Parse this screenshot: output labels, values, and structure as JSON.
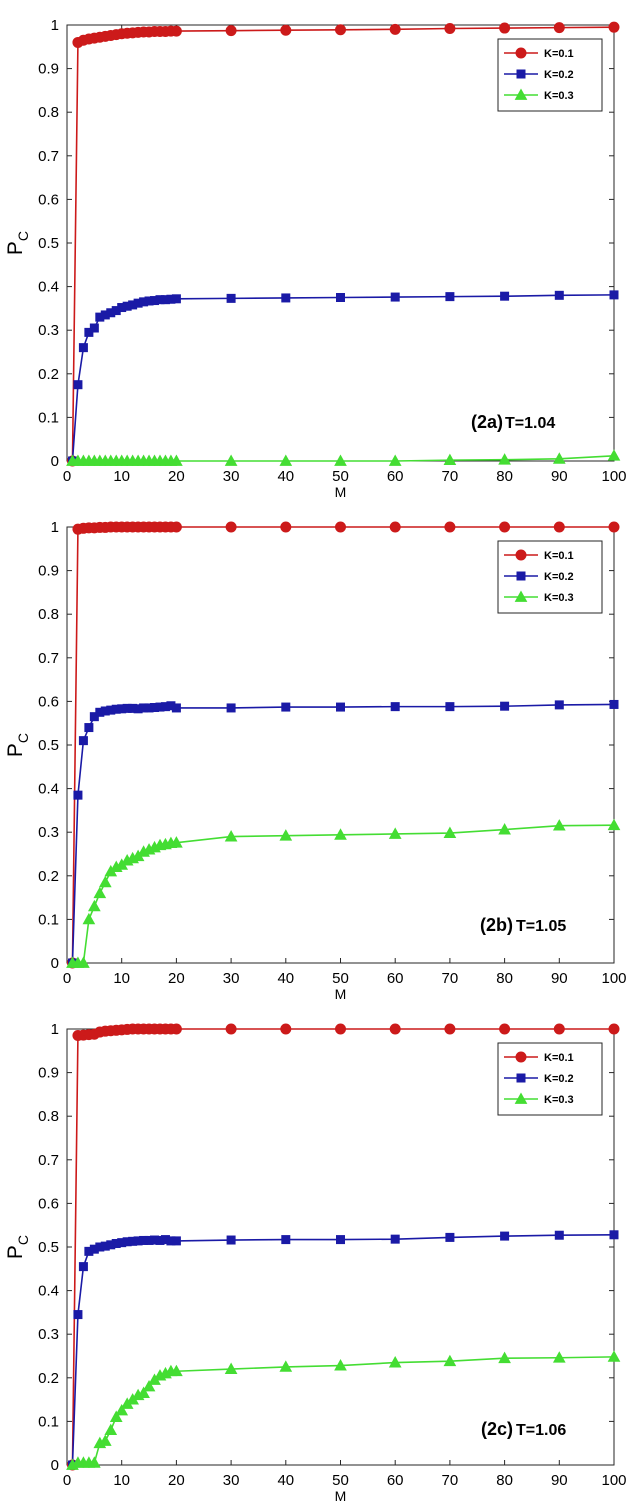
{
  "figure": {
    "panels": [
      {
        "panel_label": "(2a)",
        "condition": "T=1.04"
      },
      {
        "panel_label": "(2b)",
        "condition": "T=1.05"
      },
      {
        "panel_label": "(2c)",
        "condition": "T=1.06"
      }
    ]
  },
  "chart_data": [
    {
      "type": "line",
      "xlabel": "M",
      "ylabel": "P",
      "ylabel_subscript": "C",
      "xlim": [
        0,
        100
      ],
      "ylim": [
        0,
        1
      ],
      "xticks": [
        0,
        10,
        20,
        30,
        40,
        50,
        60,
        70,
        80,
        90,
        100
      ],
      "yticks": [
        0,
        0.1,
        0.2,
        0.3,
        0.4,
        0.5,
        0.6,
        0.7,
        0.8,
        0.9,
        1
      ],
      "grid": false,
      "legend_position": "top-right",
      "series": [
        {
          "name": "K=0.1",
          "color": "#cc1a1a",
          "marker": "circle",
          "x": [
            1,
            2,
            3,
            4,
            5,
            6,
            7,
            8,
            9,
            10,
            11,
            12,
            13,
            14,
            15,
            16,
            17,
            18,
            19,
            20,
            30,
            40,
            50,
            60,
            70,
            80,
            90,
            100
          ],
          "y": [
            0,
            0.96,
            0.965,
            0.968,
            0.97,
            0.972,
            0.974,
            0.976,
            0.978,
            0.98,
            0.981,
            0.982,
            0.983,
            0.984,
            0.984,
            0.985,
            0.985,
            0.985,
            0.986,
            0.986,
            0.987,
            0.988,
            0.989,
            0.99,
            0.992,
            0.993,
            0.994,
            0.995
          ]
        },
        {
          "name": "K=0.2",
          "color": "#1a1aa6",
          "marker": "square",
          "x": [
            1,
            2,
            3,
            4,
            5,
            6,
            7,
            8,
            9,
            10,
            11,
            12,
            13,
            14,
            15,
            16,
            17,
            18,
            19,
            20,
            30,
            40,
            50,
            60,
            70,
            80,
            90,
            100
          ],
          "y": [
            0,
            0.175,
            0.26,
            0.295,
            0.305,
            0.33,
            0.335,
            0.34,
            0.345,
            0.352,
            0.355,
            0.358,
            0.362,
            0.365,
            0.367,
            0.368,
            0.37,
            0.37,
            0.371,
            0.372,
            0.373,
            0.374,
            0.375,
            0.376,
            0.377,
            0.378,
            0.38,
            0.381
          ]
        },
        {
          "name": "K=0.3",
          "color": "#44dd33",
          "marker": "triangle",
          "x": [
            1,
            2,
            3,
            4,
            5,
            6,
            7,
            8,
            9,
            10,
            11,
            12,
            13,
            14,
            15,
            16,
            17,
            18,
            19,
            20,
            30,
            40,
            50,
            60,
            70,
            80,
            90,
            100
          ],
          "y": [
            0,
            0,
            0,
            0,
            0,
            0,
            0,
            0,
            0,
            0,
            0,
            0,
            0,
            0,
            0,
            0,
            0,
            0,
            0,
            0,
            0,
            0,
            0,
            0,
            0.002,
            0.003,
            0.005,
            0.012
          ]
        }
      ]
    },
    {
      "type": "line",
      "xlabel": "M",
      "ylabel": "P",
      "ylabel_subscript": "C",
      "xlim": [
        0,
        100
      ],
      "ylim": [
        0,
        1
      ],
      "xticks": [
        0,
        10,
        20,
        30,
        40,
        50,
        60,
        70,
        80,
        90,
        100
      ],
      "yticks": [
        0,
        0.1,
        0.2,
        0.3,
        0.4,
        0.5,
        0.6,
        0.7,
        0.8,
        0.9,
        1
      ],
      "grid": false,
      "legend_position": "top-right",
      "series": [
        {
          "name": "K=0.1",
          "color": "#cc1a1a",
          "marker": "circle",
          "x": [
            1,
            2,
            3,
            4,
            5,
            6,
            7,
            8,
            9,
            10,
            11,
            12,
            13,
            14,
            15,
            16,
            17,
            18,
            19,
            20,
            30,
            40,
            50,
            60,
            70,
            80,
            90,
            100
          ],
          "y": [
            0,
            0.995,
            0.997,
            0.998,
            0.998,
            0.999,
            0.999,
            1,
            1,
            1,
            1,
            1,
            1,
            1,
            1,
            1,
            1,
            1,
            1,
            1,
            1,
            1,
            1,
            1,
            1,
            1,
            1,
            1
          ]
        },
        {
          "name": "K=0.2",
          "color": "#1a1aa6",
          "marker": "square",
          "x": [
            1,
            2,
            3,
            4,
            5,
            6,
            7,
            8,
            9,
            10,
            11,
            12,
            13,
            14,
            15,
            16,
            17,
            18,
            19,
            20,
            30,
            40,
            50,
            60,
            70,
            80,
            90,
            100
          ],
          "y": [
            0,
            0.385,
            0.51,
            0.54,
            0.565,
            0.575,
            0.578,
            0.58,
            0.582,
            0.583,
            0.584,
            0.584,
            0.583,
            0.585,
            0.585,
            0.586,
            0.587,
            0.588,
            0.59,
            0.585,
            0.585,
            0.587,
            0.587,
            0.588,
            0.588,
            0.589,
            0.592,
            0.593
          ]
        },
        {
          "name": "K=0.3",
          "color": "#44dd33",
          "marker": "triangle",
          "x": [
            1,
            2,
            3,
            4,
            5,
            6,
            7,
            8,
            9,
            10,
            11,
            12,
            13,
            14,
            15,
            16,
            17,
            18,
            19,
            20,
            30,
            40,
            50,
            60,
            70,
            80,
            90,
            100
          ],
          "y": [
            0,
            0,
            0,
            0.1,
            0.13,
            0.16,
            0.185,
            0.21,
            0.22,
            0.225,
            0.235,
            0.24,
            0.245,
            0.255,
            0.26,
            0.265,
            0.27,
            0.272,
            0.275,
            0.276,
            0.29,
            0.292,
            0.294,
            0.296,
            0.298,
            0.306,
            0.315,
            0.316
          ]
        }
      ]
    },
    {
      "type": "line",
      "xlabel": "M",
      "ylabel": "P",
      "ylabel_subscript": "C",
      "xlim": [
        0,
        100
      ],
      "ylim": [
        0,
        1
      ],
      "xticks": [
        0,
        10,
        20,
        30,
        40,
        50,
        60,
        70,
        80,
        90,
        100
      ],
      "yticks": [
        0,
        0.1,
        0.2,
        0.3,
        0.4,
        0.5,
        0.6,
        0.7,
        0.8,
        0.9,
        1
      ],
      "grid": false,
      "legend_position": "top-right",
      "series": [
        {
          "name": "K=0.1",
          "color": "#cc1a1a",
          "marker": "circle",
          "x": [
            1,
            2,
            3,
            4,
            5,
            6,
            7,
            8,
            9,
            10,
            11,
            12,
            13,
            14,
            15,
            16,
            17,
            18,
            19,
            20,
            30,
            40,
            50,
            60,
            70,
            80,
            90,
            100
          ],
          "y": [
            0,
            0.985,
            0.986,
            0.987,
            0.988,
            0.993,
            0.995,
            0.996,
            0.997,
            0.998,
            0.999,
            1,
            1,
            1,
            1,
            1,
            1,
            1,
            1,
            1,
            1,
            1,
            1,
            1,
            1,
            1,
            1,
            1
          ]
        },
        {
          "name": "K=0.2",
          "color": "#1a1aa6",
          "marker": "square",
          "x": [
            1,
            2,
            3,
            4,
            5,
            6,
            7,
            8,
            9,
            10,
            11,
            12,
            13,
            14,
            15,
            16,
            17,
            18,
            19,
            20,
            30,
            40,
            50,
            60,
            70,
            80,
            90,
            100
          ],
          "y": [
            0,
            0.345,
            0.455,
            0.49,
            0.495,
            0.5,
            0.502,
            0.505,
            0.508,
            0.51,
            0.512,
            0.513,
            0.514,
            0.515,
            0.515,
            0.516,
            0.515,
            0.517,
            0.514,
            0.514,
            0.516,
            0.517,
            0.517,
            0.518,
            0.522,
            0.525,
            0.527,
            0.528
          ]
        },
        {
          "name": "K=0.3",
          "color": "#44dd33",
          "marker": "triangle",
          "x": [
            1,
            2,
            3,
            4,
            5,
            6,
            7,
            8,
            9,
            10,
            11,
            12,
            13,
            14,
            15,
            16,
            17,
            18,
            19,
            20,
            30,
            40,
            50,
            60,
            70,
            80,
            90,
            100
          ],
          "y": [
            0,
            0.005,
            0.005,
            0.005,
            0.005,
            0.05,
            0.055,
            0.08,
            0.11,
            0.125,
            0.14,
            0.15,
            0.16,
            0.165,
            0.18,
            0.195,
            0.205,
            0.21,
            0.215,
            0.215,
            0.22,
            0.225,
            0.228,
            0.235,
            0.238,
            0.245,
            0.246,
            0.248
          ]
        }
      ]
    }
  ]
}
